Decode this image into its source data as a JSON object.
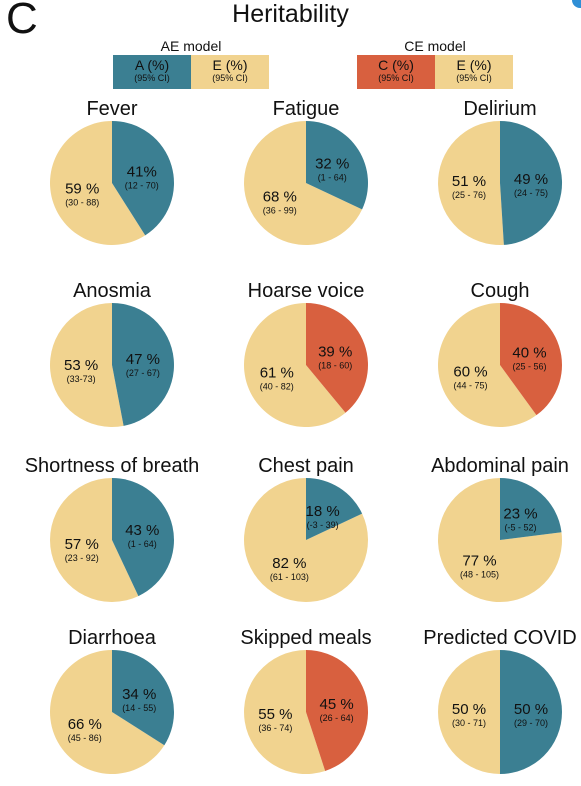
{
  "panel_letter": "C",
  "title": "Heritability",
  "colors": {
    "A": "#3b7f92",
    "E": "#f1d38f",
    "C": "#d8603f"
  },
  "legend": {
    "ae": {
      "title": "AE model",
      "boxes": [
        {
          "label": "A (%)",
          "ci": "(95% CI)",
          "color_key": "A"
        },
        {
          "label": "E (%)",
          "ci": "(95% CI)",
          "color_key": "E"
        }
      ]
    },
    "ce": {
      "title": "CE model",
      "boxes": [
        {
          "label": "C (%)",
          "ci": "(95% CI)",
          "color_key": "C"
        },
        {
          "label": "E (%)",
          "ci": "(95% CI)",
          "color_key": "E"
        }
      ]
    }
  },
  "chart_data": {
    "type": "pie",
    "title": "Heritability",
    "charts": [
      {
        "name": "Fever",
        "model": "AE",
        "first": {
          "component": "A",
          "value": 41,
          "label": "41%",
          "ci": "(12 - 70)"
        },
        "second": {
          "component": "E",
          "value": 59,
          "label": "59 %",
          "ci": "(30 - 88)"
        }
      },
      {
        "name": "Fatigue",
        "model": "AE",
        "first": {
          "component": "A",
          "value": 32,
          "label": "32 %",
          "ci": "(1 - 64)"
        },
        "second": {
          "component": "E",
          "value": 68,
          "label": "68 %",
          "ci": "(36 - 99)"
        }
      },
      {
        "name": "Delirium",
        "model": "AE",
        "first": {
          "component": "A",
          "value": 49,
          "label": "49 %",
          "ci": "(24 - 75)"
        },
        "second": {
          "component": "E",
          "value": 51,
          "label": "51 %",
          "ci": "(25 - 76)"
        }
      },
      {
        "name": "Anosmia",
        "model": "AE",
        "first": {
          "component": "A",
          "value": 47,
          "label": "47 %",
          "ci": "(27 - 67)"
        },
        "second": {
          "component": "E",
          "value": 53,
          "label": "53 %",
          "ci": "(33-73)"
        }
      },
      {
        "name": "Hoarse voice",
        "model": "CE",
        "first": {
          "component": "C",
          "value": 39,
          "label": "39 %",
          "ci": "(18 - 60)"
        },
        "second": {
          "component": "E",
          "value": 61,
          "label": "61 %",
          "ci": "(40 - 82)"
        }
      },
      {
        "name": "Cough",
        "model": "CE",
        "first": {
          "component": "C",
          "value": 40,
          "label": "40 %",
          "ci": "(25 - 56)"
        },
        "second": {
          "component": "E",
          "value": 60,
          "label": "60 %",
          "ci": "(44 - 75)"
        }
      },
      {
        "name": "Shortness of breath",
        "model": "AE",
        "first": {
          "component": "A",
          "value": 43,
          "label": "43 %",
          "ci": "(1 - 64)"
        },
        "second": {
          "component": "E",
          "value": 57,
          "label": "57 %",
          "ci": "(23 - 92)"
        }
      },
      {
        "name": "Chest pain",
        "model": "AE",
        "first": {
          "component": "A",
          "value": 18,
          "label": "18 %",
          "ci": "(-3 - 39)"
        },
        "second": {
          "component": "E",
          "value": 82,
          "label": "82 %",
          "ci": "(61 - 103)"
        }
      },
      {
        "name": "Abdominal pain",
        "model": "AE",
        "first": {
          "component": "A",
          "value": 23,
          "label": "23 %",
          "ci": "(-5 - 52)"
        },
        "second": {
          "component": "E",
          "value": 77,
          "label": "77 %",
          "ci": "(48 - 105)"
        }
      },
      {
        "name": "Diarrhoea",
        "model": "AE",
        "first": {
          "component": "A",
          "value": 34,
          "label": "34 %",
          "ci": "(14 - 55)"
        },
        "second": {
          "component": "E",
          "value": 66,
          "label": "66 %",
          "ci": "(45 - 86)"
        }
      },
      {
        "name": "Skipped meals",
        "model": "CE",
        "first": {
          "component": "C",
          "value": 45,
          "label": "45 %",
          "ci": "(26 - 64)"
        },
        "second": {
          "component": "E",
          "value": 55,
          "label": "55 %",
          "ci": "(36 - 74)"
        }
      },
      {
        "name": "Predicted COVID",
        "model": "AE",
        "first": {
          "component": "A",
          "value": 50,
          "label": "50 %",
          "ci": "(29 - 70)"
        },
        "second": {
          "component": "E",
          "value": 50,
          "label": "50 %",
          "ci": "(30 - 71)"
        }
      }
    ]
  }
}
